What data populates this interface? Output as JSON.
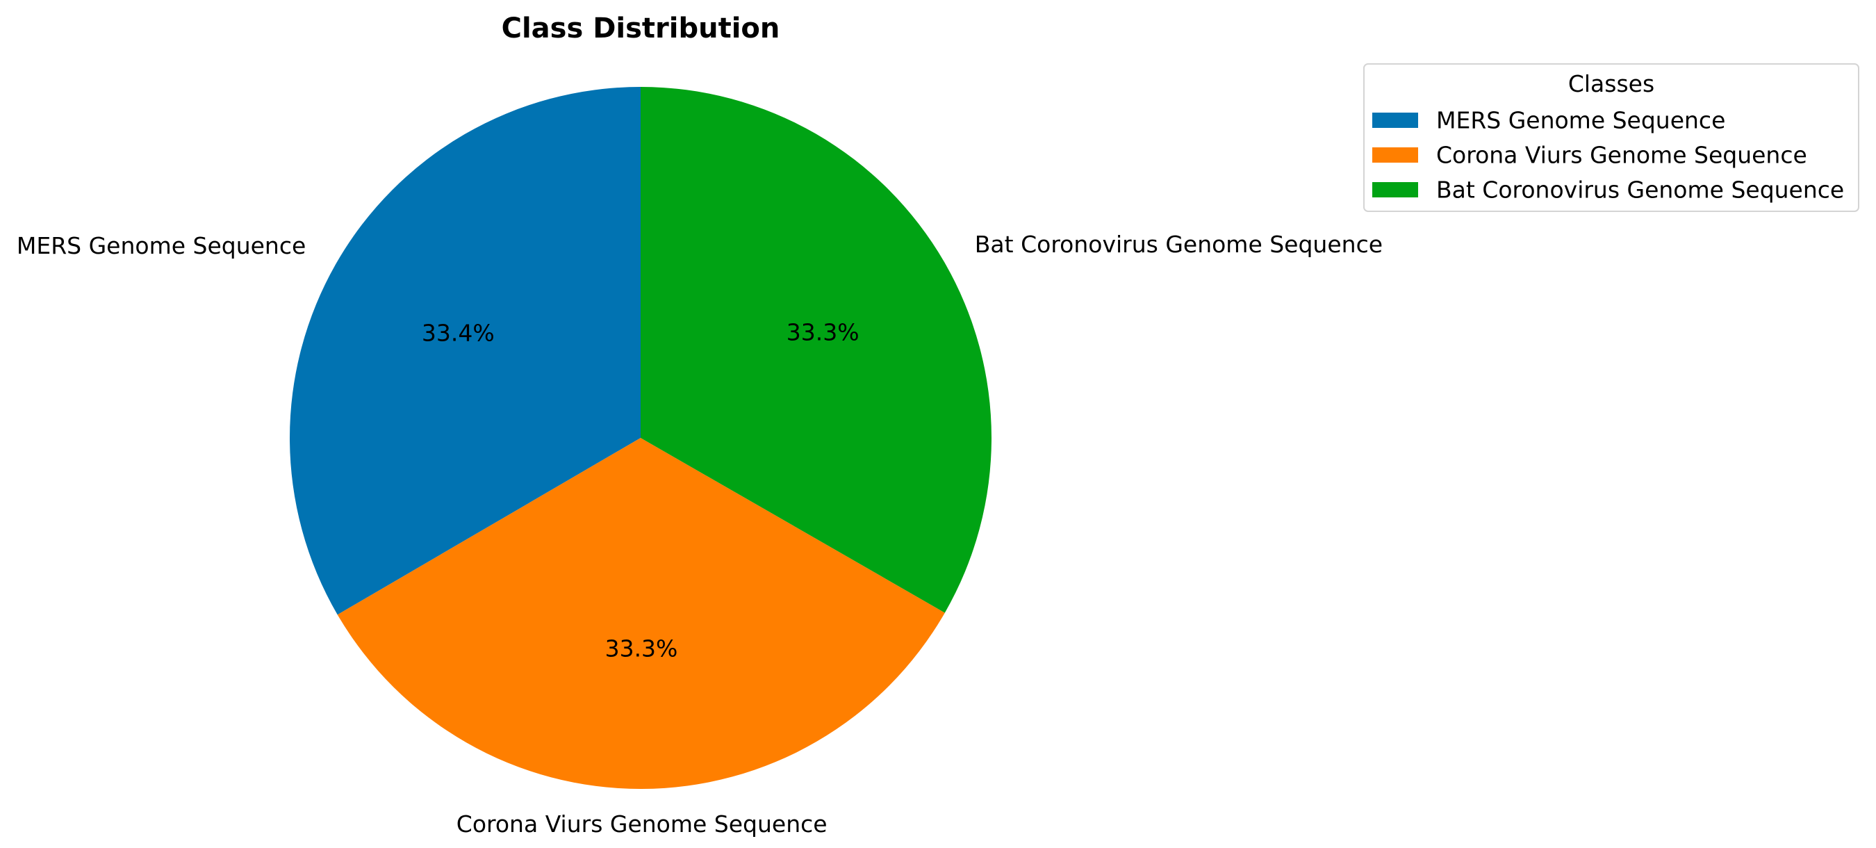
{
  "chart_data": {
    "type": "pie",
    "title": "Class Distribution",
    "categories": [
      "MERS Genome Sequence",
      "Corona Viurs Genome Sequence",
      "Bat Coronovirus Genome Sequence"
    ],
    "values": [
      33.4,
      33.3,
      33.3
    ],
    "percent_labels": [
      "33.4%",
      "33.3%",
      "33.3%"
    ],
    "colors": [
      "#0173b2",
      "#ff7f00",
      "#00a314"
    ],
    "start_angle_deg": 90,
    "direction": "counterclockwise",
    "legend": {
      "title": "Classes",
      "placement": "top-right",
      "entries": [
        "MERS Genome Sequence",
        "Corona Viurs Genome Sequence",
        "Bat Coronovirus Genome Sequence"
      ]
    }
  }
}
